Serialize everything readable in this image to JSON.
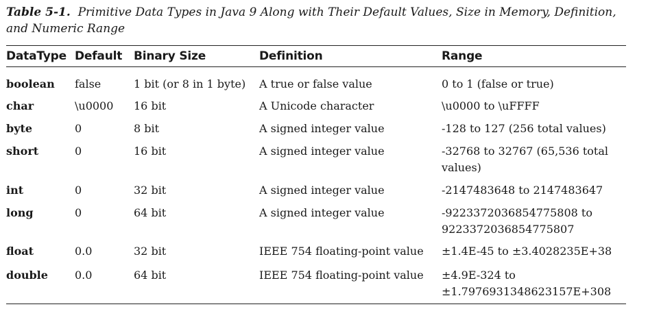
{
  "caption": {
    "label": "Table 5-1.",
    "text": "Primitive Data Types in Java 9 Along with Their Default Values, Size in Memory, Definition, and Numeric Range"
  },
  "table": {
    "headers": [
      "DataType",
      "Default",
      "Binary Size",
      "Definition",
      "Range"
    ],
    "rows": [
      {
        "type": "boolean",
        "default": "false",
        "size": "1 bit (or 8 in 1 byte)",
        "definition": "A true or false value",
        "range": "0 to 1 (false or true)"
      },
      {
        "type": "char",
        "default": "\\u0000",
        "size": "16 bit",
        "definition": "A Unicode character",
        "range": "\\u0000 to \\uFFFF"
      },
      {
        "type": "byte",
        "default": "0",
        "size": "8 bit",
        "definition": "A signed integer value",
        "range": "-128 to 127 (256 total values)"
      },
      {
        "type": "short",
        "default": "0",
        "size": "16 bit",
        "definition": "A signed integer value",
        "range": "-32768 to 32767 (65,536 total values)"
      },
      {
        "type": "int",
        "default": "0",
        "size": "32 bit",
        "definition": "A signed integer value",
        "range": "-2147483648 to 2147483647"
      },
      {
        "type": "long",
        "default": "0",
        "size": "64 bit",
        "definition": "A signed integer value",
        "range": "-9223372036854775808 to 9223372036854775807"
      },
      {
        "type": "float",
        "default": "0.0",
        "size": "32 bit",
        "definition": "IEEE 754 floating-point value",
        "range": "±1.4E-45 to ±3.4028235E+38"
      },
      {
        "type": "double",
        "default": "0.0",
        "size": "64 bit",
        "definition": "IEEE 754 floating-point value",
        "range": "±4.9E-324 to ±1.7976931348623157E+308"
      }
    ]
  }
}
